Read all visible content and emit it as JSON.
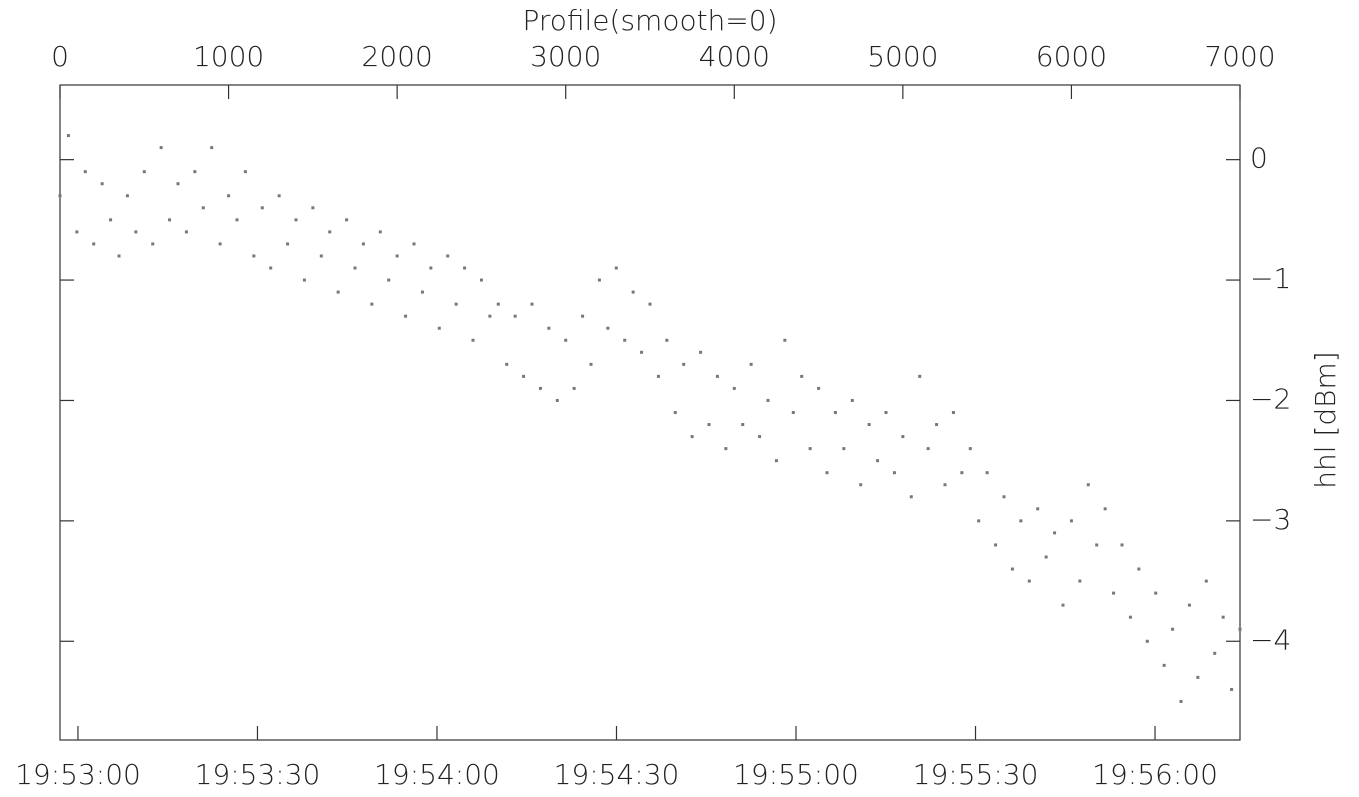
{
  "chart_data": {
    "type": "scatter",
    "title": "Profile(smooth=0)",
    "y_label": "hhl [dBm]",
    "color": "#777777",
    "xlim": [
      0,
      7000
    ],
    "xticks": [
      0,
      1000,
      2000,
      3000,
      4000,
      5000,
      6000,
      7000
    ],
    "x2lim": [
      71577,
      71774.2
    ],
    "x2ticks": [
      {
        "value": 71580,
        "label": "19:53:00"
      },
      {
        "value": 71610,
        "label": "19:53:30"
      },
      {
        "value": 71640,
        "label": "19:54:00"
      },
      {
        "value": 71670,
        "label": "19:54:30"
      },
      {
        "value": 71700,
        "label": "19:55:00"
      },
      {
        "value": 71730,
        "label": "19:55:30"
      },
      {
        "value": 71760,
        "label": "19:56:00"
      }
    ],
    "ylim": [
      -4.82,
      0.62
    ],
    "yticks": [
      0,
      {
        "value": -1,
        "label": "−1"
      },
      {
        "value": -2,
        "label": "−2"
      },
      {
        "value": -3,
        "label": "−3"
      },
      {
        "value": -4,
        "label": "−4"
      }
    ],
    "x": [
      0,
      50,
      100,
      150,
      200,
      250,
      300,
      350,
      400,
      450,
      500,
      550,
      600,
      650,
      700,
      750,
      800,
      850,
      900,
      950,
      1000,
      1050,
      1100,
      1150,
      1200,
      1250,
      1300,
      1350,
      1400,
      1450,
      1500,
      1550,
      1600,
      1650,
      1700,
      1750,
      1800,
      1850,
      1900,
      1950,
      2000,
      2050,
      2100,
      2150,
      2200,
      2250,
      2300,
      2350,
      2400,
      2450,
      2500,
      2550,
      2600,
      2650,
      2700,
      2750,
      2800,
      2850,
      2900,
      2950,
      3000,
      3050,
      3100,
      3150,
      3200,
      3250,
      3300,
      3350,
      3400,
      3450,
      3500,
      3550,
      3600,
      3650,
      3700,
      3750,
      3800,
      3850,
      3900,
      3950,
      4000,
      4050,
      4100,
      4150,
      4200,
      4250,
      4300,
      4350,
      4400,
      4450,
      4500,
      4550,
      4600,
      4650,
      4700,
      4750,
      4800,
      4850,
      4900,
      4950,
      5000,
      5050,
      5100,
      5150,
      5200,
      5250,
      5300,
      5350,
      5400,
      5450,
      5500,
      5550,
      5600,
      5650,
      5700,
      5750,
      5800,
      5850,
      5900,
      5950,
      6000,
      6050,
      6100,
      6150,
      6200,
      6250,
      6300,
      6350,
      6400,
      6450,
      6500,
      6550,
      6600,
      6650,
      6700,
      6750,
      6800,
      6850,
      6900,
      6950,
      7000
    ],
    "values": [
      -0.3,
      0.2,
      -0.6,
      -0.1,
      -0.7,
      -0.2,
      -0.5,
      -0.8,
      -0.3,
      -0.6,
      -0.1,
      -0.7,
      0.1,
      -0.5,
      -0.2,
      -0.6,
      -0.1,
      -0.4,
      0.1,
      -0.7,
      -0.3,
      -0.5,
      -0.1,
      -0.8,
      -0.4,
      -0.9,
      -0.3,
      -0.7,
      -0.5,
      -1.0,
      -0.4,
      -0.8,
      -0.6,
      -1.1,
      -0.5,
      -0.9,
      -0.7,
      -1.2,
      -0.6,
      -1.0,
      -0.8,
      -1.3,
      -0.7,
      -1.1,
      -0.9,
      -1.4,
      -0.8,
      -1.2,
      -0.9,
      -1.5,
      -1.0,
      -1.3,
      -1.2,
      -1.7,
      -1.3,
      -1.8,
      -1.2,
      -1.9,
      -1.4,
      -2.0,
      -1.5,
      -1.9,
      -1.3,
      -1.7,
      -1.0,
      -1.4,
      -0.9,
      -1.5,
      -1.1,
      -1.6,
      -1.2,
      -1.8,
      -1.5,
      -2.1,
      -1.7,
      -2.3,
      -1.6,
      -2.2,
      -1.8,
      -2.4,
      -1.9,
      -2.2,
      -1.7,
      -2.3,
      -2.0,
      -2.5,
      -1.5,
      -2.1,
      -1.8,
      -2.4,
      -1.9,
      -2.6,
      -2.1,
      -2.4,
      -2.0,
      -2.7,
      -2.2,
      -2.5,
      -2.1,
      -2.6,
      -2.3,
      -2.8,
      -1.8,
      -2.4,
      -2.2,
      -2.7,
      -2.1,
      -2.6,
      -2.4,
      -3.0,
      -2.6,
      -3.2,
      -2.8,
      -3.4,
      -3.0,
      -3.5,
      -2.9,
      -3.3,
      -3.1,
      -3.7,
      -3.0,
      -3.5,
      -2.7,
      -3.2,
      -2.9,
      -3.6,
      -3.2,
      -3.8,
      -3.4,
      -4.0,
      -3.6,
      -4.2,
      -3.9,
      -4.5,
      -3.7,
      -4.3,
      -3.5,
      -4.1,
      -3.8,
      -4.4,
      -3.9
    ]
  }
}
